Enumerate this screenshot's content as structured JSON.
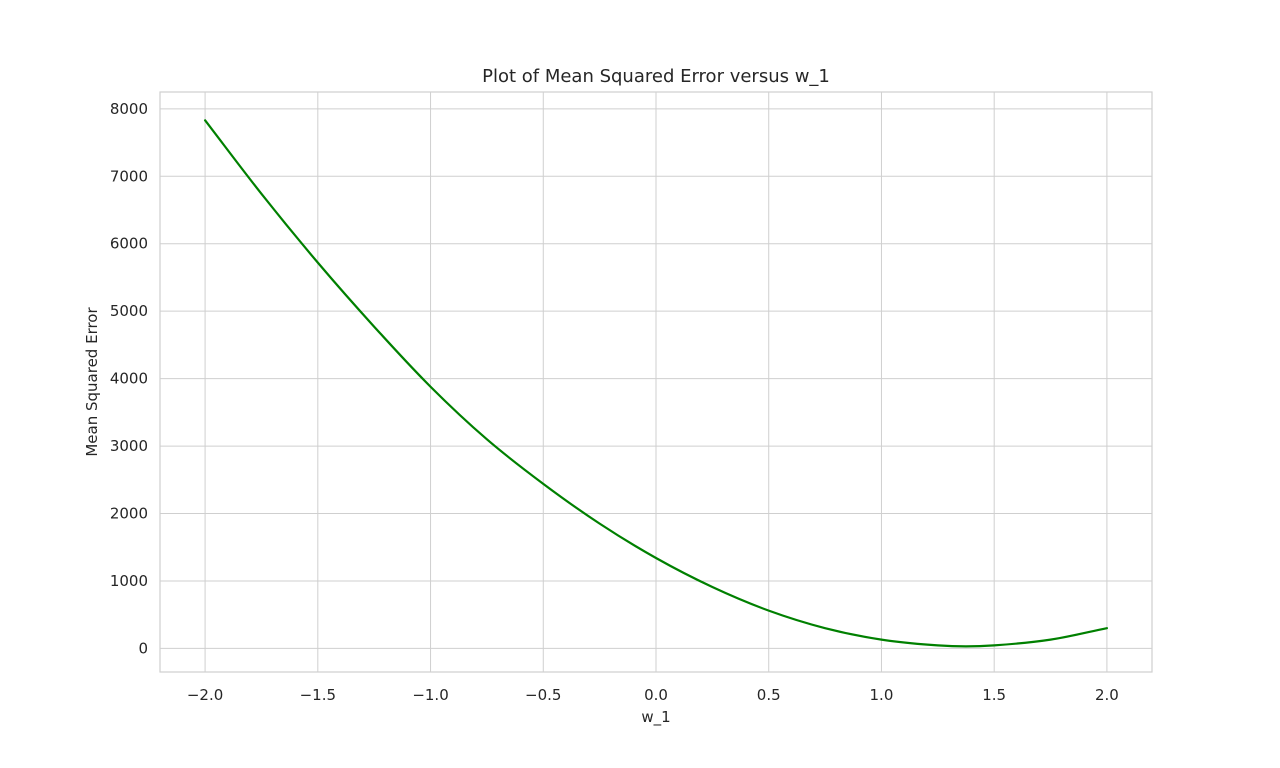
{
  "chart_data": {
    "type": "line",
    "title": "Plot of Mean Squared Error versus w_1",
    "xlabel": "w_1",
    "ylabel": "Mean Squared Error",
    "xlim": [
      -2.2,
      2.2
    ],
    "ylim": [
      -350,
      8250
    ],
    "x_ticks": [
      -2.0,
      -1.5,
      -1.0,
      -0.5,
      0.0,
      0.5,
      1.0,
      1.5,
      2.0
    ],
    "x_tick_labels": [
      "−2.0",
      "−1.5",
      "−1.0",
      "−0.5",
      "0.0",
      "0.5",
      "1.0",
      "1.5",
      "2.0"
    ],
    "y_ticks": [
      0,
      1000,
      2000,
      3000,
      4000,
      5000,
      6000,
      7000,
      8000
    ],
    "y_tick_labels": [
      "0",
      "1000",
      "2000",
      "3000",
      "4000",
      "5000",
      "6000",
      "7000",
      "8000"
    ],
    "grid": true,
    "series": [
      {
        "color": "#008000",
        "x": [
          -2.0,
          -1.75,
          -1.5,
          -1.25,
          -1.0,
          -0.75,
          -0.5,
          -0.25,
          0.0,
          0.25,
          0.5,
          0.75,
          1.0,
          1.25,
          1.375,
          1.5,
          1.75,
          2.0
        ],
        "y": [
          7830,
          6740,
          5720,
          4770,
          3880,
          3100,
          2440,
          1850,
          1340,
          910,
          560,
          300,
          130,
          45,
          30,
          45,
          130,
          300
        ]
      }
    ]
  }
}
